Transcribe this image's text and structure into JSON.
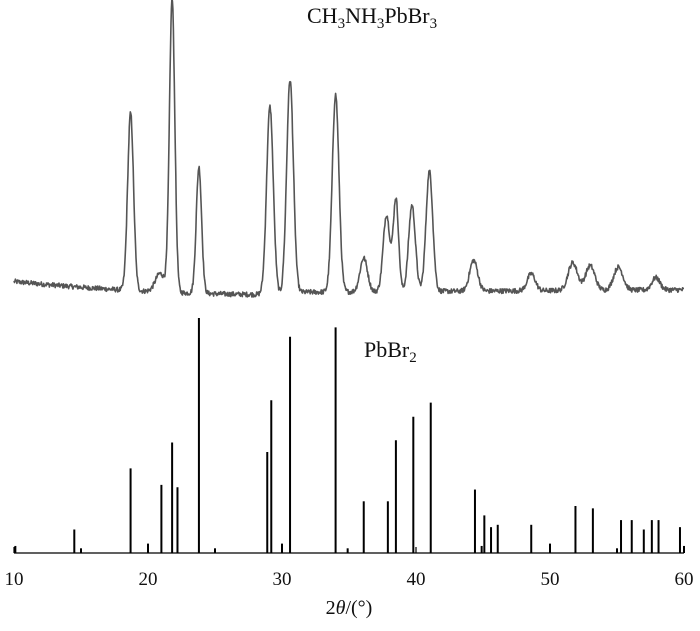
{
  "chart_data": [
    {
      "type": "line",
      "series_label": "CH3NH3PbBr3",
      "series_label_parts": [
        "CH",
        "3",
        "NH",
        "3",
        "PbBr",
        "3"
      ],
      "color": "#555555",
      "background": {
        "start": 12,
        "end": 9,
        "min": 3.5,
        "min_at": 30
      },
      "peaks": [
        {
          "x": 18.7,
          "y": 115,
          "w": 0.22
        },
        {
          "x": 20.9,
          "y": 12,
          "w": 0.35
        },
        {
          "x": 21.8,
          "y": 190,
          "w": 0.2
        },
        {
          "x": 23.8,
          "y": 82,
          "w": 0.2
        },
        {
          "x": 29.1,
          "y": 122,
          "w": 0.25
        },
        {
          "x": 30.6,
          "y": 138,
          "w": 0.25
        },
        {
          "x": 34.0,
          "y": 128,
          "w": 0.25
        },
        {
          "x": 36.1,
          "y": 22,
          "w": 0.28
        },
        {
          "x": 37.8,
          "y": 50,
          "w": 0.25
        },
        {
          "x": 38.5,
          "y": 60,
          "w": 0.2
        },
        {
          "x": 39.7,
          "y": 56,
          "w": 0.25
        },
        {
          "x": 41.0,
          "y": 78,
          "w": 0.25
        },
        {
          "x": 44.3,
          "y": 20,
          "w": 0.3
        },
        {
          "x": 48.6,
          "y": 11,
          "w": 0.3
        },
        {
          "x": 51.7,
          "y": 18,
          "w": 0.35
        },
        {
          "x": 53.0,
          "y": 16,
          "w": 0.35
        },
        {
          "x": 55.1,
          "y": 15,
          "w": 0.35
        },
        {
          "x": 57.9,
          "y": 8,
          "w": 0.3
        }
      ],
      "noise": 1.6
    },
    {
      "type": "bar",
      "series_label": "PbBr2",
      "series_label_parts": [
        "PbBr",
        "2"
      ],
      "color": "#000000",
      "x": [
        10.1,
        14.5,
        15.0,
        18.7,
        20.0,
        21.0,
        21.8,
        22.2,
        23.8,
        25.0,
        28.9,
        29.2,
        30.0,
        30.6,
        34.0,
        34.9,
        36.1,
        37.9,
        38.5,
        39.8,
        41.1,
        44.4,
        44.9,
        45.1,
        45.6,
        46.1,
        48.6,
        50.0,
        51.9,
        53.2,
        55.0,
        55.3,
        56.1,
        57.0,
        57.6,
        58.1,
        59.7,
        60.0
      ],
      "values": [
        3,
        10,
        2,
        36,
        4,
        29,
        47,
        28,
        100,
        2,
        43,
        65,
        4,
        92,
        96,
        2,
        22,
        22,
        48,
        58,
        64,
        27,
        3,
        16,
        11,
        12,
        12,
        4,
        20,
        19,
        2,
        14,
        14,
        10,
        14,
        14,
        11,
        3
      ]
    }
  ],
  "x_axis": {
    "min": 10,
    "max": 60,
    "ticks": [
      "10",
      "20",
      "30",
      "40",
      "50",
      "60"
    ],
    "title_parts": [
      "2",
      "θ",
      "/(°)"
    ]
  }
}
